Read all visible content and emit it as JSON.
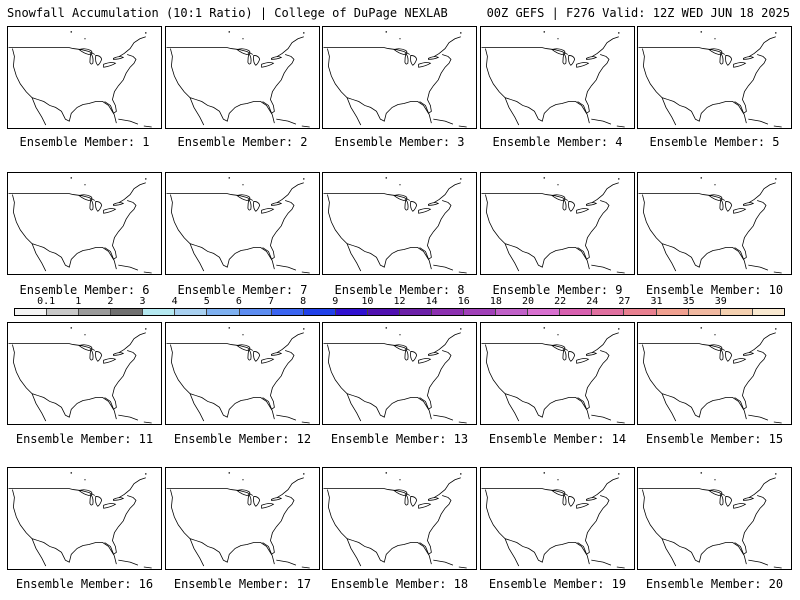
{
  "header": {
    "left_title": "Snowfall Accumulation (10:1 Ratio) | College of DuPage NEXLAB",
    "right_title": "00Z GEFS | F276 Valid: 12Z WED JUN 18 2025"
  },
  "panels": [
    {
      "label": "Ensemble Member: 1"
    },
    {
      "label": "Ensemble Member: 2"
    },
    {
      "label": "Ensemble Member: 3"
    },
    {
      "label": "Ensemble Member: 4"
    },
    {
      "label": "Ensemble Member: 5"
    },
    {
      "label": "Ensemble Member: 6"
    },
    {
      "label": "Ensemble Member: 7"
    },
    {
      "label": "Ensemble Member: 8"
    },
    {
      "label": "Ensemble Member: 9"
    },
    {
      "label": "Ensemble Member: 10"
    },
    {
      "label": "Ensemble Member: 11"
    },
    {
      "label": "Ensemble Member: 12"
    },
    {
      "label": "Ensemble Member: 13"
    },
    {
      "label": "Ensemble Member: 14"
    },
    {
      "label": "Ensemble Member: 15"
    },
    {
      "label": "Ensemble Member: 16"
    },
    {
      "label": "Ensemble Member: 17"
    },
    {
      "label": "Ensemble Member: 18"
    },
    {
      "label": "Ensemble Member: 19"
    },
    {
      "label": "Ensemble Member: 20"
    }
  ],
  "colorbar": {
    "labels": [
      "0.1",
      "1",
      "2",
      "3",
      "4",
      "5",
      "6",
      "7",
      "8",
      "9",
      "10",
      "12",
      "14",
      "16",
      "18",
      "20",
      "22",
      "24",
      "27",
      "31",
      "35",
      "39"
    ],
    "colors": [
      "#f4f4f4",
      "#c8c8c8",
      "#9a9a9a",
      "#707070",
      "#b4e8f0",
      "#a8d0f0",
      "#7eb0f0",
      "#5c8cf0",
      "#3a64f0",
      "#2040e8",
      "#3010d0",
      "#5010b0",
      "#6c20a8",
      "#8c30b0",
      "#a040b8",
      "#c060c8",
      "#d870d0",
      "#d860b0",
      "#e070a0",
      "#e88090",
      "#f0a090",
      "#f0b8a0",
      "#f4d0b0",
      "#f8e8d0"
    ]
  }
}
